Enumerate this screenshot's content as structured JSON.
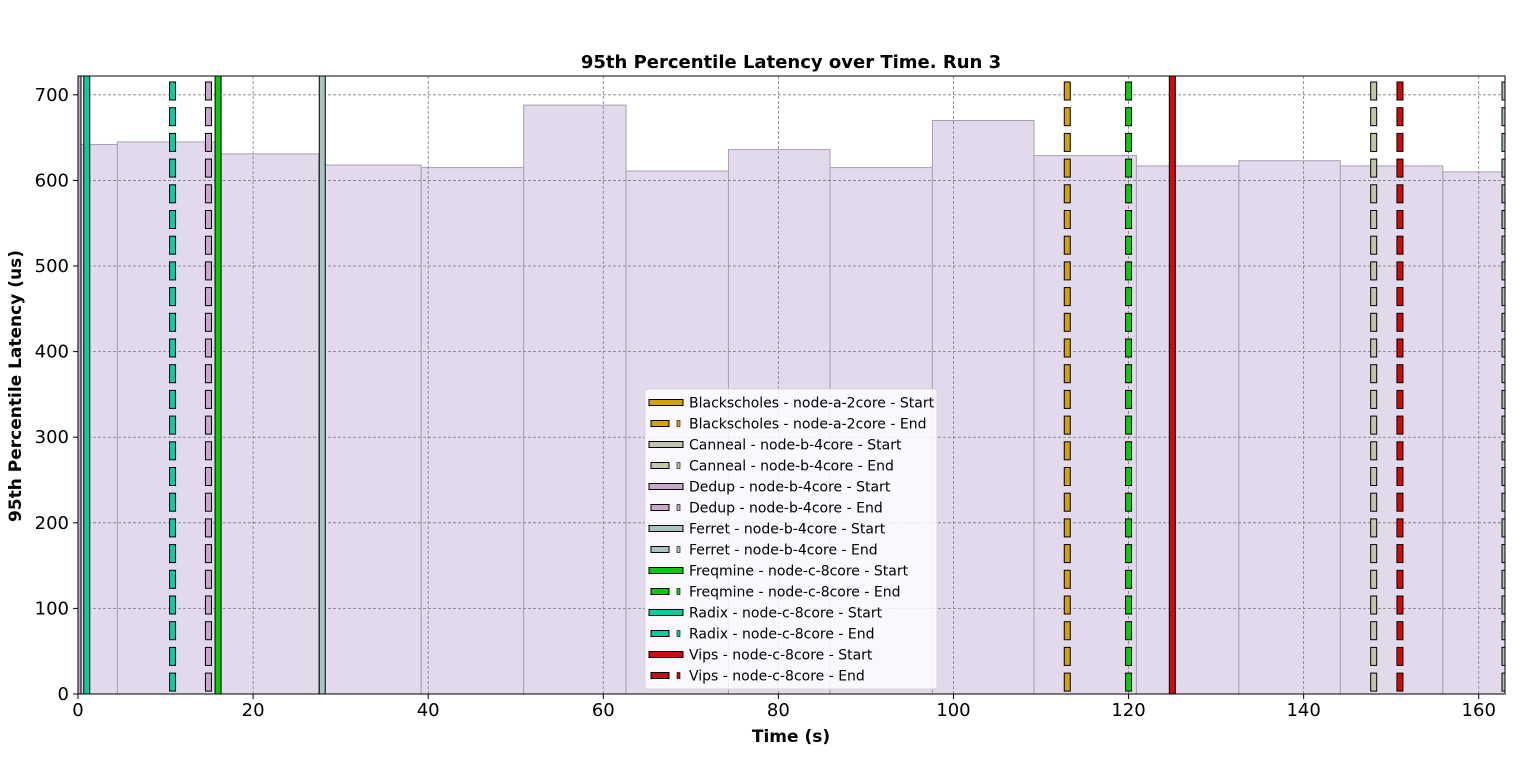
{
  "chart_data": {
    "type": "bar",
    "title": "95th Percentile Latency over Time. Run 3",
    "xlabel": "Time (s)",
    "ylabel": "95th Percentile Latency (us)",
    "xlim": [
      0,
      163
    ],
    "ylim": [
      0,
      722
    ],
    "xticks": [
      0,
      20,
      40,
      60,
      80,
      100,
      120,
      140,
      160
    ],
    "yticks": [
      0,
      100,
      200,
      300,
      400,
      500,
      600,
      700
    ],
    "grid": true,
    "legend_position": "lower center",
    "bar_color": "#e2d9ec",
    "bar_edge_color": "#a89fb0",
    "bars": [
      {
        "start": 0.0,
        "end": 4.5,
        "value": 642
      },
      {
        "start": 4.5,
        "end": 15.7,
        "value": 645
      },
      {
        "start": 15.7,
        "end": 27.5,
        "value": 631
      },
      {
        "start": 27.5,
        "end": 39.2,
        "value": 618
      },
      {
        "start": 39.2,
        "end": 50.9,
        "value": 615
      },
      {
        "start": 50.9,
        "end": 62.6,
        "value": 688
      },
      {
        "start": 62.6,
        "end": 74.3,
        "value": 611
      },
      {
        "start": 74.3,
        "end": 85.9,
        "value": 636
      },
      {
        "start": 85.9,
        "end": 97.6,
        "value": 615
      },
      {
        "start": 97.6,
        "end": 109.2,
        "value": 670
      },
      {
        "start": 109.2,
        "end": 120.9,
        "value": 629
      },
      {
        "start": 120.9,
        "end": 132.6,
        "value": 617
      },
      {
        "start": 132.6,
        "end": 144.2,
        "value": 623
      },
      {
        "start": 144.2,
        "end": 155.9,
        "value": 617
      },
      {
        "start": 155.9,
        "end": 163.0,
        "value": 610
      }
    ],
    "events": [
      {
        "job": "Blackscholes",
        "node": "node-a-2core",
        "color": "#d4a017",
        "start": 0.0,
        "end": 113.0
      },
      {
        "job": "Canneal",
        "node": "node-b-4core",
        "color": "#c2c5a8",
        "start": 0.0,
        "end": 148.0
      },
      {
        "job": "Dedup",
        "node": "node-b-4core",
        "color": "#c8a8cc",
        "start": 0.0,
        "end": 14.9
      },
      {
        "job": "Ferret",
        "node": "node-b-4core",
        "color": "#a8c4c0",
        "start": 27.9,
        "end": 163.0
      },
      {
        "job": "Freqmine",
        "node": "node-c-8core",
        "color": "#11c611",
        "start": 16.0,
        "end": 120.0
      },
      {
        "job": "Radix",
        "node": "node-c-8core",
        "color": "#0ccba0",
        "start": 1.0,
        "end": 10.8
      },
      {
        "job": "Vips",
        "node": "node-c-8core",
        "color": "#cc0d0d",
        "start": 125.0,
        "end": 151.0
      }
    ],
    "legend": [
      "Blackscholes - node-a-2core - Start",
      "Blackscholes - node-a-2core - End",
      "Canneal - node-b-4core - Start",
      "Canneal - node-b-4core - End",
      "Dedup - node-b-4core - Start",
      "Dedup - node-b-4core - End",
      "Ferret - node-b-4core - Start",
      "Ferret - node-b-4core - End",
      "Freqmine - node-c-8core - Start",
      "Freqmine - node-c-8core - End",
      "Radix - node-c-8core - Start",
      "Radix - node-c-8core - End",
      "Vips - node-c-8core - Start",
      "Vips - node-c-8core - End"
    ]
  }
}
